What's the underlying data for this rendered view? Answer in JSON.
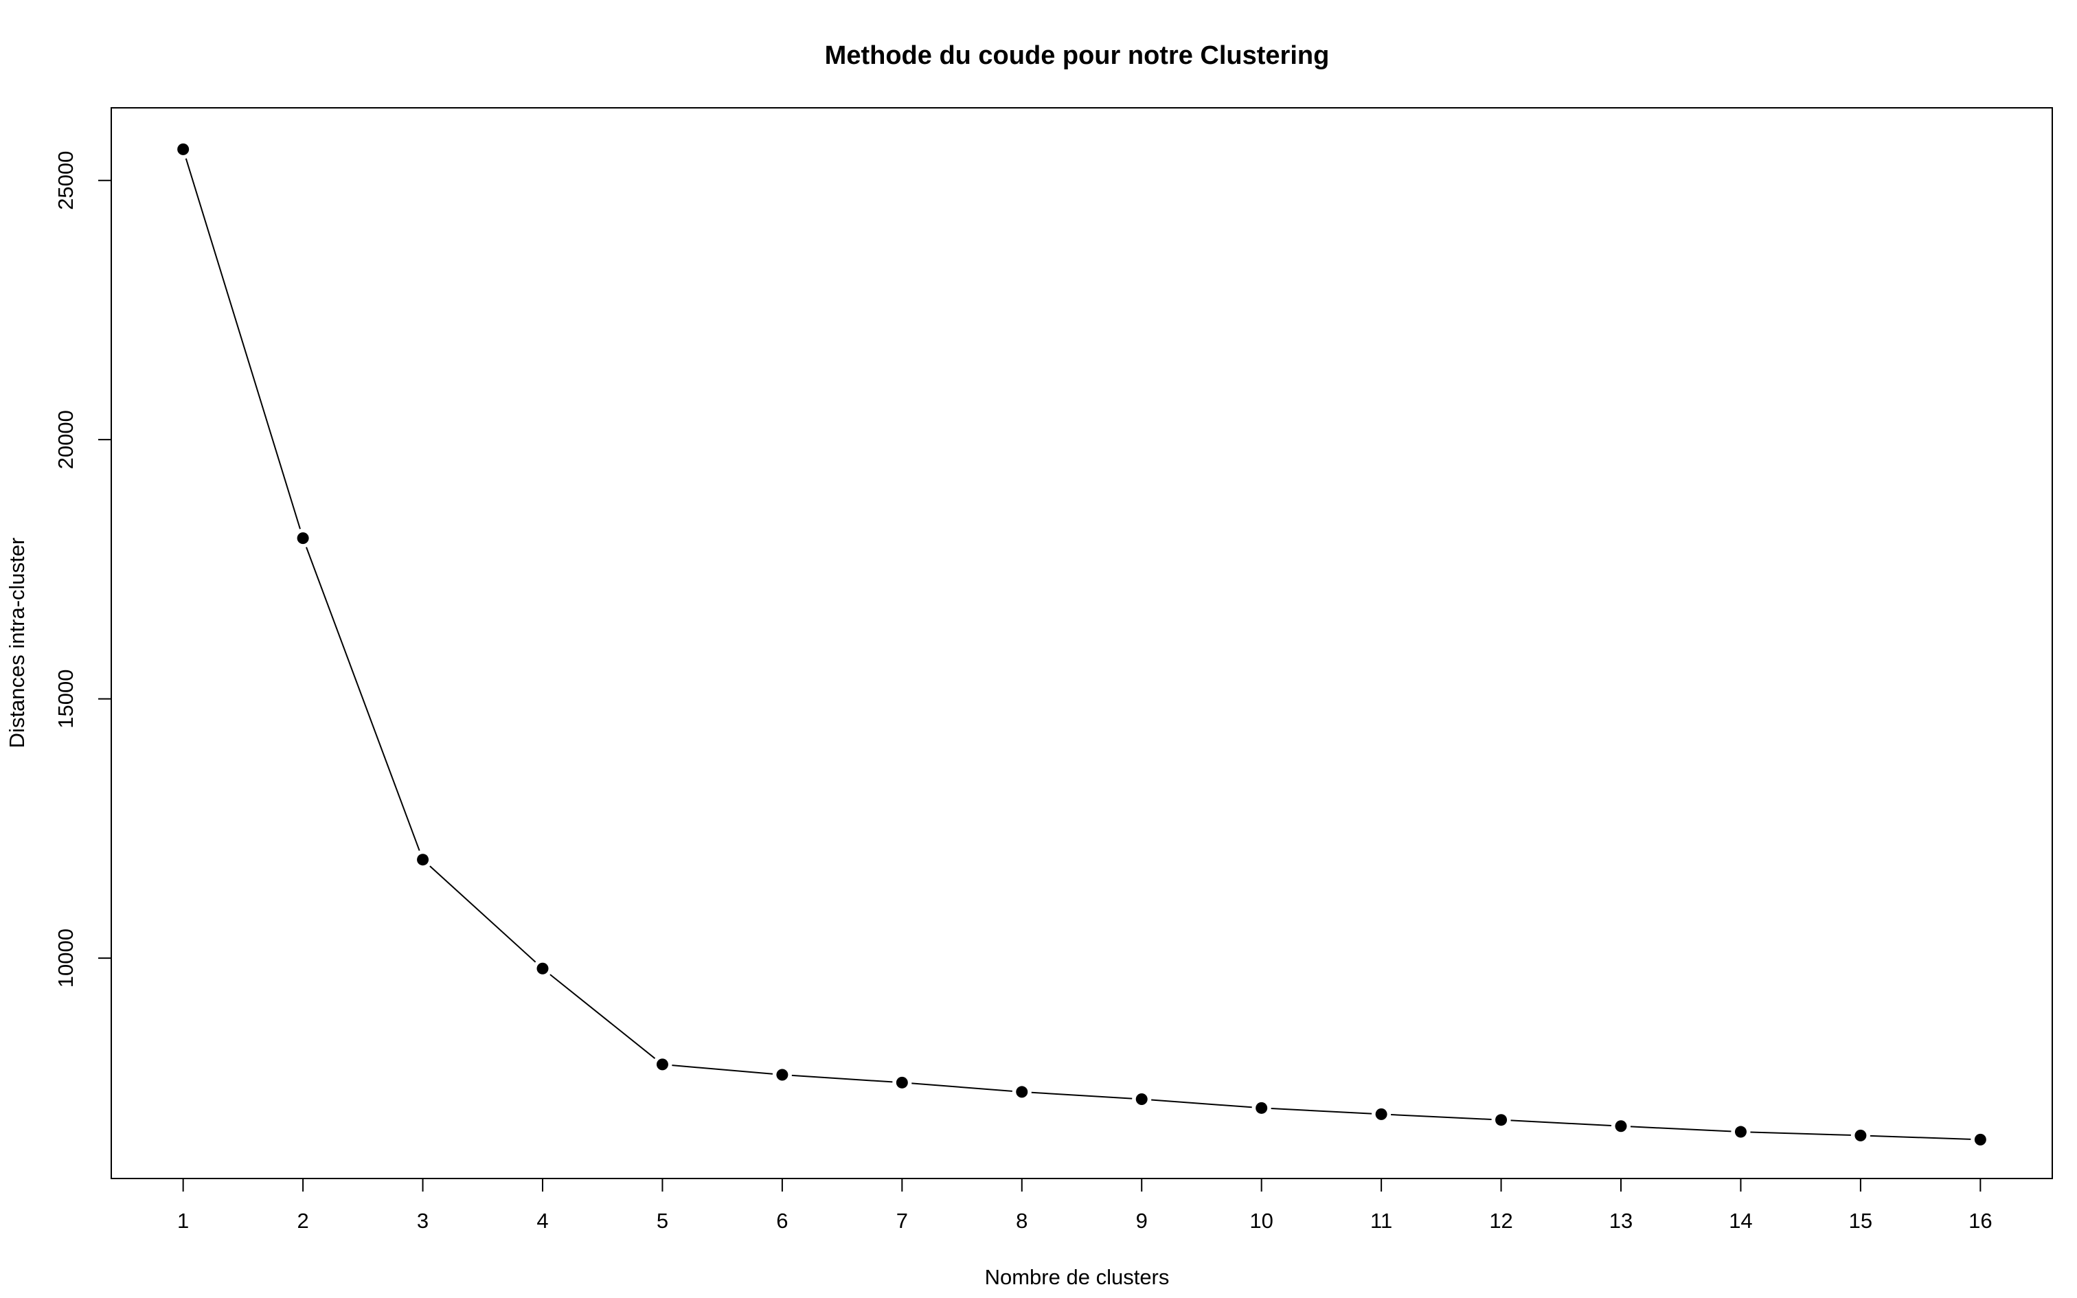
{
  "chart_data": {
    "type": "line",
    "title": "Methode du coude pour notre Clustering",
    "xlabel": "Nombre de clusters",
    "ylabel": "Distances intra-cluster",
    "x": [
      1,
      2,
      3,
      4,
      5,
      6,
      7,
      8,
      9,
      10,
      11,
      12,
      13,
      14,
      15,
      16
    ],
    "x_ticks": [
      "1",
      "2",
      "3",
      "4",
      "5",
      "6",
      "7",
      "8",
      "9",
      "10",
      "11",
      "12",
      "13",
      "14",
      "15",
      "16"
    ],
    "y_ticks": [
      "10000",
      "15000",
      "20000",
      "25000"
    ],
    "y_tick_values": [
      10000,
      15000,
      20000,
      25000
    ],
    "series": [
      {
        "values": [
          25600,
          18100,
          11900,
          9800,
          7950,
          7750,
          7600,
          7420,
          7280,
          7110,
          6990,
          6880,
          6760,
          6650,
          6580,
          6500
        ]
      }
    ],
    "xlim": [
      0.4,
      16.6
    ],
    "ylim": [
      5750,
      26400
    ],
    "grid": false,
    "legend": "none",
    "marker": "filled-circle",
    "line_color": "#000000",
    "point_color": "#000000"
  }
}
